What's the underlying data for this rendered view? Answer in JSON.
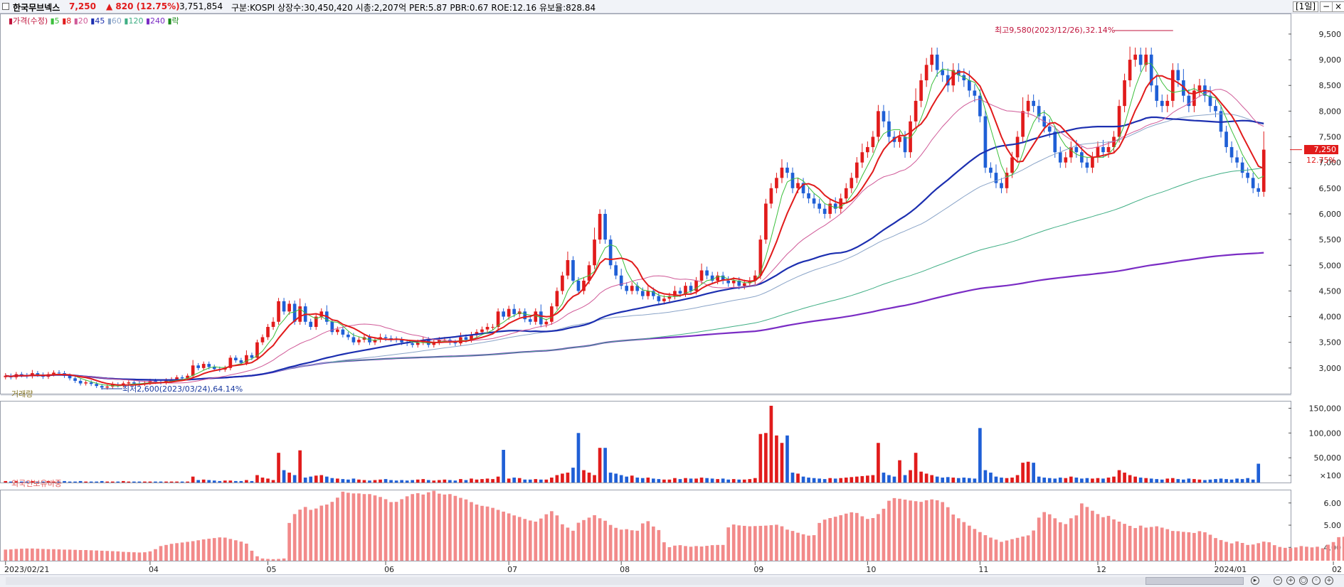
{
  "header": {
    "stock_name": "한국무브넥스",
    "price": "7,250",
    "change": "▲ 820 (12.75%)",
    "volume": "3,751,854",
    "info": "구분:KOSPI  상장수:30,450,420  시총:2,207억  PER:5.87  PBR:0.67  ROE:12.16  유보율:828.84",
    "period_button": "[1일]"
  },
  "colors": {
    "up": "#e11b1b",
    "down": "#1f5fd6",
    "ma5": "#3bbf3b",
    "ma8": "#e11b1b",
    "ma20": "#d05a98",
    "ma45": "#1c2fb0",
    "ma60": "#8aa4c8",
    "ma120": "#3fae84",
    "ma240": "#7a2cc4",
    "foreign": "#f28a8a"
  },
  "chart_data": [
    {
      "type": "candlestick",
      "legend": [
        "가격(수정)",
        "5",
        "8",
        "20",
        "45",
        "60",
        "120",
        "240",
        "락"
      ],
      "ylim": [
        2500,
        9900
      ],
      "y_ticks": [
        "9,500",
        "9,000",
        "8,500",
        "8,000",
        "7,500",
        "7,000",
        "6,500",
        "6,000",
        "5,500",
        "5,000",
        "4,500",
        "4,000",
        "3,500",
        "3,000"
      ],
      "y_tick_values": [
        9500,
        9000,
        8500,
        8000,
        7500,
        7000,
        6500,
        6000,
        5500,
        5000,
        4500,
        4000,
        3500,
        3000
      ],
      "current_price_label": "7,250",
      "current_change_label": "12.75%",
      "current_price": 7250,
      "annotations": {
        "high": "최고9,580(2023/12/26),32.14%",
        "low": "최저2,600(2023/03/24),64.14%",
        "high_value": 9580,
        "low_value": 2600
      },
      "x_labels": [
        "2023/02/21",
        "04",
        "05",
        "06",
        "07",
        "08",
        "09",
        "10",
        "11",
        "12",
        "2024/01",
        "02"
      ],
      "x_label_positions": [
        0,
        27,
        49,
        71,
        94,
        115,
        140,
        161,
        182,
        204,
        226,
        248
      ],
      "closes": [
        2850,
        2820,
        2880,
        2860,
        2840,
        2900,
        2870,
        2830,
        2880,
        2910,
        2900,
        2850,
        2800,
        2750,
        2700,
        2720,
        2690,
        2650,
        2620,
        2640,
        2680,
        2660,
        2700,
        2720,
        2700,
        2690,
        2710,
        2750,
        2730,
        2720,
        2750,
        2780,
        2820,
        2800,
        2850,
        3050,
        3000,
        3080,
        3020,
        2980,
        2970,
        3000,
        3200,
        3150,
        3100,
        3250,
        3200,
        3500,
        3600,
        3800,
        3900,
        4300,
        4100,
        4250,
        3900,
        4200,
        3900,
        3800,
        4000,
        4100,
        3900,
        3700,
        3750,
        3650,
        3600,
        3500,
        3550,
        3600,
        3500,
        3550,
        3600,
        3580,
        3560,
        3550,
        3500,
        3480,
        3450,
        3500,
        3550,
        3450,
        3500,
        3550,
        3550,
        3500,
        3480,
        3600,
        3550,
        3650,
        3700,
        3750,
        3800,
        3800,
        4100,
        4000,
        4150,
        4050,
        4100,
        3950,
        3900,
        4100,
        3850,
        3900,
        4200,
        4500,
        4800,
        5100,
        4700,
        4500,
        4700,
        5000,
        5500,
        6000,
        5500,
        5000,
        4800,
        4600,
        4500,
        4600,
        4500,
        4400,
        4500,
        4400,
        4300,
        4350,
        4400,
        4500,
        4450,
        4600,
        4500,
        4700,
        4900,
        4800,
        4700,
        4800,
        4700,
        4650,
        4700,
        4600,
        4650,
        4700,
        4800,
        5500,
        6200,
        6500,
        6700,
        6900,
        6800,
        6500,
        6600,
        6400,
        6300,
        6200,
        6100,
        6000,
        6200,
        6100,
        6300,
        6500,
        6700,
        7000,
        7200,
        7300,
        7500,
        8000,
        7800,
        7500,
        7400,
        7500,
        7200,
        7800,
        8200,
        8600,
        8900,
        9100,
        8800,
        8700,
        8500,
        8800,
        8700,
        8600,
        8400,
        8300,
        7900,
        6900,
        6800,
        6600,
        6500,
        6800,
        7100,
        7500,
        8000,
        8200,
        8100,
        7900,
        7700,
        7600,
        7200,
        7000,
        7100,
        7300,
        7200,
        7000,
        6900,
        7100,
        7300,
        7200,
        7300,
        7500,
        8100,
        8600,
        9000,
        9100,
        8900,
        9100,
        8500,
        8200,
        8100,
        8200,
        8800,
        8600,
        8300,
        8100,
        8400,
        8500,
        8300,
        8100,
        8000,
        7600,
        7300,
        7100,
        7000,
        6800,
        6700,
        6500,
        6430,
        7250
      ]
    },
    {
      "type": "bar",
      "title": "거래량",
      "ylim": [
        0,
        165000
      ],
      "y_ticks": [
        "150,000",
        "100,000",
        "50,000",
        "×100"
      ],
      "y_tick_values": [
        150000,
        100000,
        50000,
        0
      ],
      "values": [
        3000,
        2000,
        3000,
        2000,
        2000,
        3000,
        2000,
        2000,
        3000,
        2000,
        2000,
        3000,
        2000,
        2000,
        3000,
        2000,
        2000,
        2000,
        3000,
        2000,
        2000,
        2000,
        3000,
        2000,
        2000,
        2000,
        2000,
        2000,
        2000,
        2000,
        2000,
        2000,
        2000,
        2000,
        2000,
        12000,
        5000,
        6000,
        5000,
        4000,
        3000,
        4000,
        4000,
        3000,
        3000,
        5000,
        3000,
        15000,
        10000,
        8000,
        5000,
        60000,
        25000,
        20000,
        15000,
        65000,
        10000,
        12000,
        14000,
        15000,
        12000,
        9000,
        8000,
        7000,
        6000,
        8000,
        6000,
        5000,
        4000,
        5000,
        6000,
        7000,
        5000,
        4000,
        5000,
        4000,
        5000,
        6000,
        7000,
        5000,
        4000,
        5000,
        6000,
        5000,
        4000,
        7000,
        5000,
        8000,
        6000,
        7000,
        8000,
        7000,
        12000,
        66000,
        8000,
        10000,
        9000,
        6000,
        6000,
        7000,
        6000,
        6000,
        10000,
        15000,
        18000,
        20000,
        30000,
        100000,
        25000,
        20000,
        15000,
        70000,
        70000,
        20000,
        18000,
        15000,
        12000,
        14000,
        10000,
        9000,
        10000,
        8000,
        7000,
        6000,
        6000,
        9000,
        7000,
        9000,
        8000,
        8000,
        10000,
        9000,
        8000,
        7000,
        8000,
        6000,
        7000,
        6000,
        6000,
        7000,
        9000,
        98000,
        100000,
        155000,
        95000,
        80000,
        95000,
        20000,
        18000,
        12000,
        10000,
        9000,
        8000,
        7000,
        9000,
        8000,
        9000,
        10000,
        11000,
        12000,
        13000,
        14000,
        15000,
        80000,
        20000,
        15000,
        12000,
        45000,
        15000,
        25000,
        60000,
        22000,
        18000,
        15000,
        12000,
        10000,
        11000,
        10000,
        9000,
        10000,
        9000,
        8000,
        110000,
        25000,
        20000,
        12000,
        10000,
        9000,
        10000,
        15000,
        40000,
        42000,
        40000,
        12000,
        10000,
        9000,
        8000,
        10000,
        9000,
        12000,
        10000,
        8000,
        9000,
        8000,
        9000,
        8000,
        10000,
        12000,
        25000,
        20000,
        15000,
        12000,
        10000,
        9000,
        8000,
        7000,
        6000,
        8000,
        9000,
        7000,
        6000,
        8000,
        7000,
        6000,
        5000,
        6000,
        7000,
        8000,
        7000,
        6000,
        8000,
        7000,
        9000,
        6000,
        38000
      ]
    },
    {
      "type": "bar",
      "title": "외국인보유비중",
      "ylim": [
        3.4,
        6.6
      ],
      "y_ticks": [
        "6.00",
        "5.00",
        "4.00"
      ],
      "y_tick_values": [
        6.0,
        5.0,
        4.0
      ],
      "values": [
        3.9,
        3.91,
        3.93,
        3.94,
        3.95,
        3.95,
        3.94,
        3.93,
        3.92,
        3.92,
        3.91,
        3.9,
        3.9,
        3.89,
        3.88,
        3.88,
        3.87,
        3.86,
        3.85,
        3.84,
        3.83,
        3.82,
        3.8,
        3.79,
        3.78,
        3.77,
        3.78,
        3.82,
        3.92,
        4.06,
        4.11,
        4.16,
        4.19,
        4.22,
        4.25,
        4.28,
        4.32,
        4.36,
        4.39,
        4.42,
        4.45,
        4.44,
        4.38,
        4.32,
        4.26,
        4.17,
        3.85,
        3.6,
        3.5,
        3.48,
        3.47,
        3.48,
        3.5,
        5.1,
        5.5,
        5.7,
        5.82,
        5.69,
        5.75,
        5.88,
        5.93,
        6.05,
        6.24,
        6.51,
        6.46,
        6.43,
        6.43,
        6.4,
        6.4,
        6.34,
        6.27,
        6.17,
        6.04,
        6.05,
        6.17,
        6.3,
        6.4,
        6.44,
        6.38,
        6.48,
        6.55,
        6.42,
        6.38,
        6.4,
        6.32,
        6.23,
        6.16,
        6.04,
        5.93,
        5.87,
        5.84,
        5.78,
        5.69,
        5.61,
        5.53,
        5.44,
        5.37,
        5.28,
        5.21,
        5.16,
        5.3,
        5.49,
        5.63,
        5.44,
        5.04,
        4.89,
        4.75,
        5.11,
        5.23,
        5.34,
        5.45,
        5.31,
        5.2,
        5.01,
        4.88,
        4.8,
        4.82,
        4.77,
        4.75,
        5.08,
        5.18,
        4.94,
        4.78,
        4.23,
        4.01,
        4.08,
        4.1,
        4.06,
        4.03,
        4.06,
        4.04,
        4.07,
        4.1,
        4.11,
        4.11,
        4.9,
        5.03,
        4.99,
        4.97,
        4.95,
        4.96,
        4.97,
        4.98,
        5.0,
        5.02,
        4.95,
        4.8,
        4.74,
        4.66,
        4.59,
        4.53,
        4.55,
        5.1,
        5.25,
        5.32,
        5.38,
        5.45,
        5.52,
        5.58,
        5.55,
        5.4,
        5.28,
        5.32,
        5.5,
        5.74,
        6.1,
        6.22,
        6.19,
        6.15,
        6.11,
        6.08,
        6.05,
        6.12,
        6.16,
        6.12,
        6.04,
        5.81,
        5.48,
        5.31,
        5.14,
        4.98,
        4.83,
        4.69,
        4.55,
        4.44,
        4.35,
        4.25,
        4.31,
        4.37,
        4.43,
        4.49,
        4.54,
        4.76,
        5.34,
        5.59,
        5.49,
        5.31,
        5.13,
        5.05,
        5.31,
        5.44,
        5.98,
        5.82,
        5.65,
        5.5,
        5.36,
        5.42,
        5.26,
        5.16,
        5.06,
        4.97,
        4.87,
        4.98,
        4.89,
        4.92,
        4.95,
        4.89,
        4.82,
        4.74,
        4.73,
        4.7,
        4.68,
        4.65,
        4.73,
        4.68,
        4.57,
        4.42,
        4.33,
        4.25,
        4.18,
        4.27,
        4.2,
        4.11,
        4.13,
        4.19,
        4.26,
        4.23,
        4.1,
        4.02,
        3.98,
        3.97,
        4.0,
        4.06,
        4.03,
        4.0,
        4.03,
        3.96,
        4.12,
        4.24,
        4.46,
        4.48,
        5.0,
        5.02
      ]
    }
  ]
}
